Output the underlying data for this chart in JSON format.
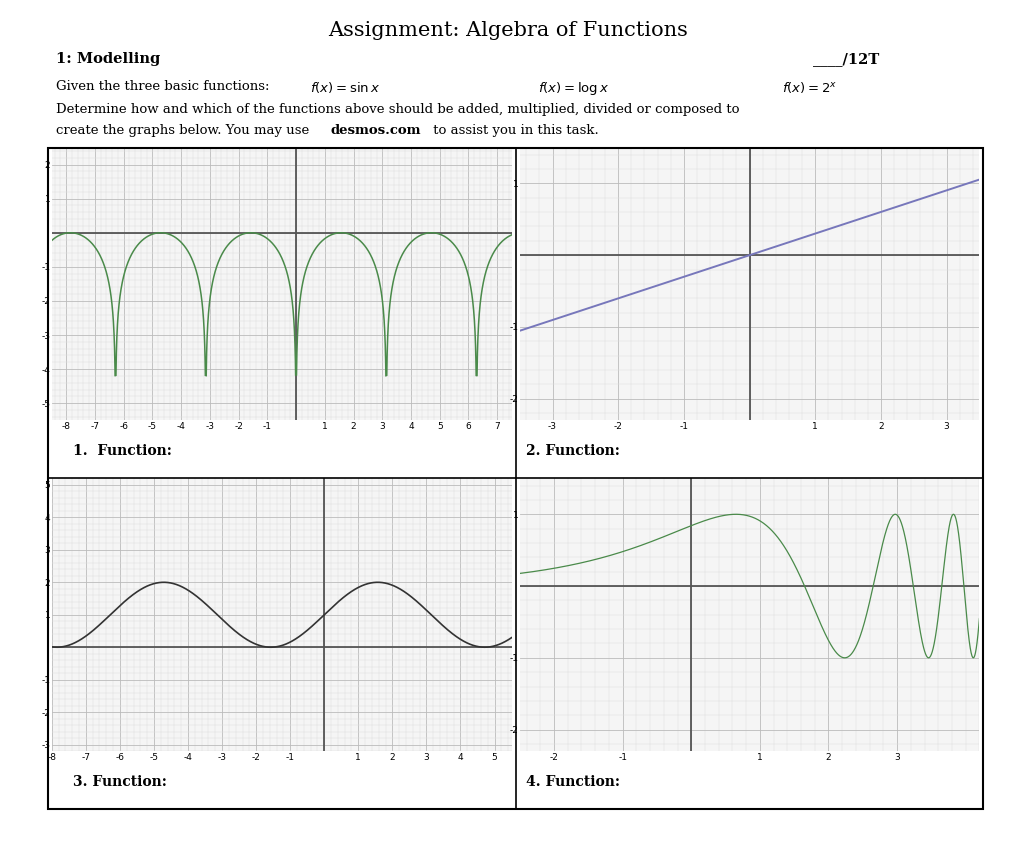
{
  "title": "Assignment: Algebra of Functions",
  "subtitle1": "1: Modelling",
  "subtitle2": "____/12T",
  "label1": "1.  Function:",
  "label2": "2. Function:",
  "label3": "3. Function:",
  "label4": "4. Function:",
  "bg_color": "#ffffff",
  "grid_major_color": "#bbbbbb",
  "grid_minor_color": "#dddddd",
  "axis_color": "#555555",
  "ax_bg": "#f5f5f5",
  "curve1_color": "#4a8a4a",
  "curve2_color": "#7777bb",
  "curve3_color": "#333333",
  "curve4_color": "#4a8a4a",
  "graph1_xlim": [
    -8.5,
    7.5
  ],
  "graph1_ylim": [
    -5.5,
    2.5
  ],
  "graph2_xlim": [
    -3.5,
    3.5
  ],
  "graph2_ylim": [
    -2.3,
    1.5
  ],
  "graph3_xlim": [
    -8.0,
    5.5
  ],
  "graph3_ylim": [
    -3.2,
    5.2
  ],
  "graph4_xlim": [
    -2.5,
    4.2
  ],
  "graph4_ylim": [
    -2.3,
    1.5
  ]
}
